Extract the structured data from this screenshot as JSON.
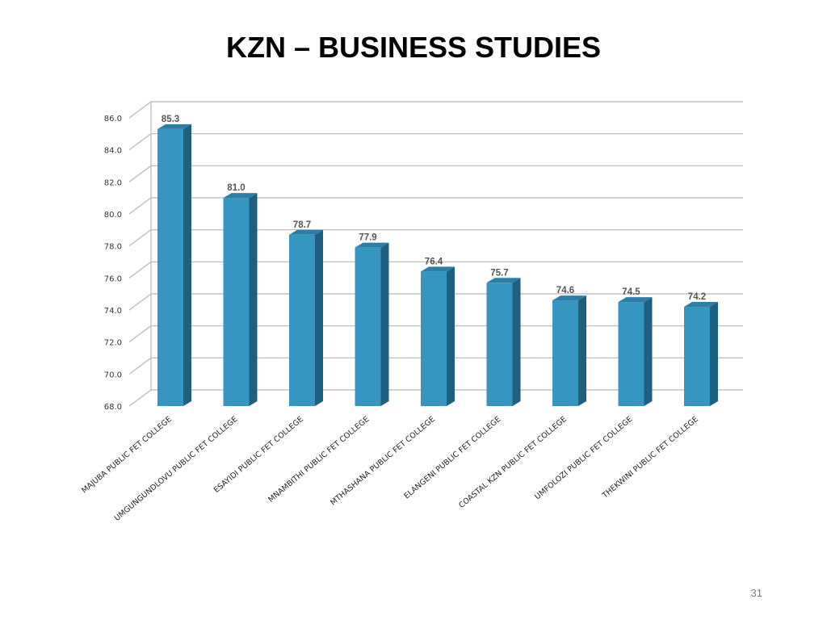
{
  "slide": {
    "title": "KZN – BUSINESS STUDIES",
    "page_number": "31"
  },
  "colors": {
    "bar_front": "#3795c1",
    "bar_side": "#1f5f80",
    "bar_top": "#2d7ea6",
    "gridline": "#b8b8b8"
  },
  "chart_data": {
    "type": "bar",
    "title": "KZN – BUSINESS STUDIES",
    "xlabel": "",
    "ylabel": "",
    "ylim": [
      68.0,
      86.0
    ],
    "yticks": [
      68.0,
      70.0,
      72.0,
      74.0,
      76.0,
      78.0,
      80.0,
      82.0,
      84.0,
      86.0
    ],
    "ytick_labels": [
      "68.0",
      "70.0",
      "72.0",
      "74.0",
      "76.0",
      "78.0",
      "80.0",
      "82.0",
      "84.0",
      "86.0"
    ],
    "grid": true,
    "legend": "none",
    "categories": [
      "MAJUBA PUBLIC FET COLLEGE",
      "UMGUNGUNDLOVU PUBLIC FET COLLEGE",
      "ESAYIDI PUBLIC FET COLLEGE",
      "MNAMBITHI PUBLIC FET COLLEGE",
      "MTHASHANA PUBLIC FET COLLEGE",
      "ELANGENI PUBLIC FET COLLEGE",
      "COASTAL KZN PUBLIC FET COLLEGE",
      "UMFOLOZI PUBLIC FET COLLEGE",
      "THEKWINI PUBLIC FET COLLEGE"
    ],
    "values": [
      85.3,
      81.0,
      78.7,
      77.9,
      76.4,
      75.7,
      74.6,
      74.5,
      74.2
    ],
    "data_labels": [
      "85.3",
      "81.0",
      "78.7",
      "77.9",
      "76.4",
      "75.7",
      "74.6",
      "74.5",
      "74.2"
    ]
  }
}
